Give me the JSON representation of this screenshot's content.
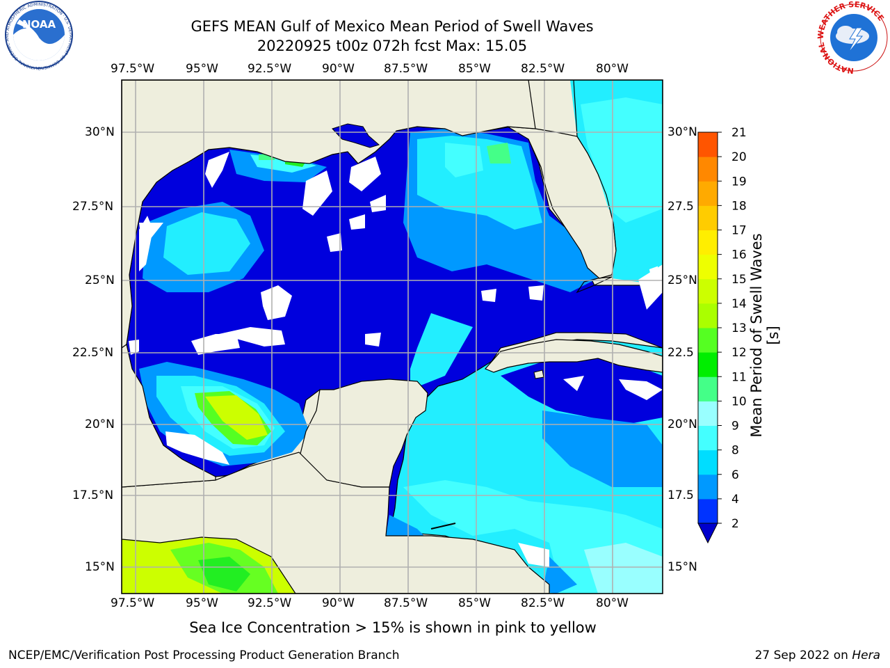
{
  "header": {
    "title_line1": "GEFS MEAN Gulf of Mexico Mean Period of Swell Waves",
    "title_line2": "20220925 t00z 072h fcst   Max: 15.05"
  },
  "logos": {
    "noaa_text": "NOAA",
    "noaa_ring": "NATIONAL OCEANIC AND ATMOSPHERIC ADMINISTRATION · U.S. DEPARTMENT OF COMMERCE",
    "nws_ring": "NATIONAL WEATHER SERVICE"
  },
  "map": {
    "lon_labels": [
      "97.5°W",
      "95°W",
      "92.5°W",
      "90°W",
      "87.5°W",
      "85°W",
      "82.5°W",
      "80°W"
    ],
    "lat_labels_left": [
      "30°N",
      "27.5°N",
      "25°N",
      "22.5°N",
      "20°N",
      "17.5°N",
      "15°N"
    ],
    "lat_labels_right": [
      "30°N",
      "27.5",
      "25°N",
      "22.5",
      "20°N",
      "17.5",
      "15°N"
    ],
    "colors": {
      "land": "#eeeedd",
      "grid": "#b0b0b0"
    }
  },
  "colorbar": {
    "label": "Mean Period of Swell Waves [s]",
    "ticks": [
      "2",
      "4",
      "6",
      "8",
      "9",
      "10",
      "11",
      "12",
      "13",
      "14",
      "15",
      "16",
      "17",
      "18",
      "19",
      "20",
      "21"
    ],
    "colors": [
      "#0033ff",
      "#0099ff",
      "#00ddff",
      "#44ffff",
      "#99ffff",
      "#44ff88",
      "#00ee00",
      "#55ff22",
      "#aaff00",
      "#ccff00",
      "#eeff00",
      "#ffee00",
      "#ffcc00",
      "#ffaa00",
      "#ff8800",
      "#ff5500",
      "#ff2200",
      "#ff0000"
    ],
    "under_color": "#0000cc"
  },
  "footer": {
    "note": "Sea Ice Concentration > 15% is shown in pink to yellow",
    "left": "NCEP/EMC/Verification Post Processing Product Generation Branch",
    "date": "27 Sep 2022 on",
    "machine": "Hera"
  }
}
